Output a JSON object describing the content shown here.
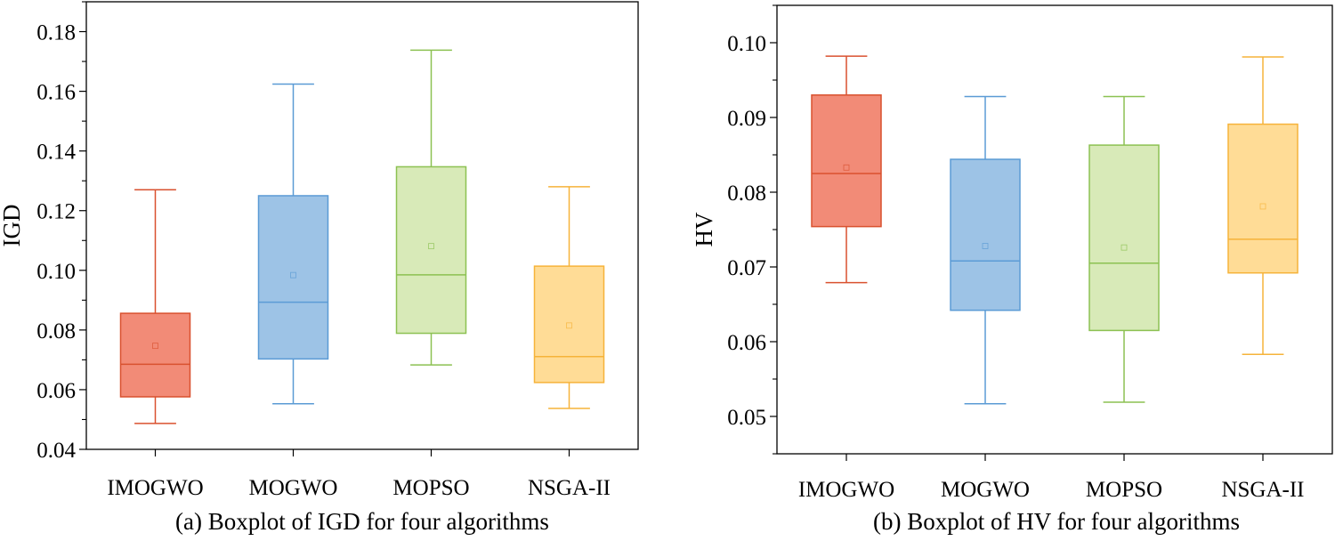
{
  "chart_data": [
    {
      "type": "boxplot",
      "caption": "(a) Boxplot of IGD for four algorithms",
      "ylabel": "IGD",
      "ylim": [
        0.04,
        0.19
      ],
      "yticks": [
        0.04,
        0.06,
        0.08,
        0.1,
        0.12,
        0.14,
        0.16,
        0.18
      ],
      "ytick_labels": [
        "0.04",
        "0.06",
        "0.08",
        "0.10",
        "0.12",
        "0.14",
        "0.16",
        "0.18"
      ],
      "categories": [
        "IMOGWO",
        "MOGWO",
        "MOPSO",
        "NSGA-II"
      ],
      "boxes": [
        {
          "name": "IMOGWO",
          "min": 0.0487,
          "q1": 0.0576,
          "median": 0.0685,
          "q3": 0.0856,
          "max": 0.127,
          "mean": 0.0747,
          "color": "#f28b77",
          "edge": "#d9512f"
        },
        {
          "name": "MOGWO",
          "min": 0.0553,
          "q1": 0.0703,
          "median": 0.0893,
          "q3": 0.125,
          "max": 0.1624,
          "mean": 0.0984,
          "color": "#9dc3e6",
          "edge": "#5b9bd5"
        },
        {
          "name": "MOPSO",
          "min": 0.0683,
          "q1": 0.0789,
          "median": 0.0985,
          "q3": 0.1347,
          "max": 0.1738,
          "mean": 0.1081,
          "color": "#d8eab8",
          "edge": "#8cc152"
        },
        {
          "name": "NSGA-II",
          "min": 0.0537,
          "q1": 0.0624,
          "median": 0.0711,
          "q3": 0.1014,
          "max": 0.128,
          "mean": 0.0815,
          "color": "#ffdc96",
          "edge": "#f6b33a"
        }
      ]
    },
    {
      "type": "boxplot",
      "caption": "(b) Boxplot of HV for four algorithms",
      "ylabel": "HV",
      "ylim": [
        0.045,
        0.105
      ],
      "yticks": [
        0.05,
        0.06,
        0.07,
        0.08,
        0.09,
        0.1
      ],
      "ytick_labels": [
        "0.05",
        "0.06",
        "0.07",
        "0.08",
        "0.09",
        "0.10"
      ],
      "categories": [
        "IMOGWO",
        "MOGWO",
        "MOPSO",
        "NSGA-II"
      ],
      "boxes": [
        {
          "name": "IMOGWO",
          "min": 0.0679,
          "q1": 0.0754,
          "median": 0.0825,
          "q3": 0.093,
          "max": 0.0982,
          "mean": 0.0833,
          "color": "#f28b77",
          "edge": "#d9512f"
        },
        {
          "name": "MOGWO",
          "min": 0.0517,
          "q1": 0.0642,
          "median": 0.0708,
          "q3": 0.0844,
          "max": 0.0928,
          "mean": 0.0728,
          "color": "#9dc3e6",
          "edge": "#5b9bd5"
        },
        {
          "name": "MOPSO",
          "min": 0.0519,
          "q1": 0.0615,
          "median": 0.0705,
          "q3": 0.0863,
          "max": 0.0928,
          "mean": 0.0726,
          "color": "#d8eab8",
          "edge": "#8cc152"
        },
        {
          "name": "NSGA-II",
          "min": 0.0583,
          "q1": 0.0692,
          "median": 0.0737,
          "q3": 0.0891,
          "max": 0.0981,
          "mean": 0.0781,
          "color": "#ffdc96",
          "edge": "#f6b33a"
        }
      ]
    }
  ]
}
